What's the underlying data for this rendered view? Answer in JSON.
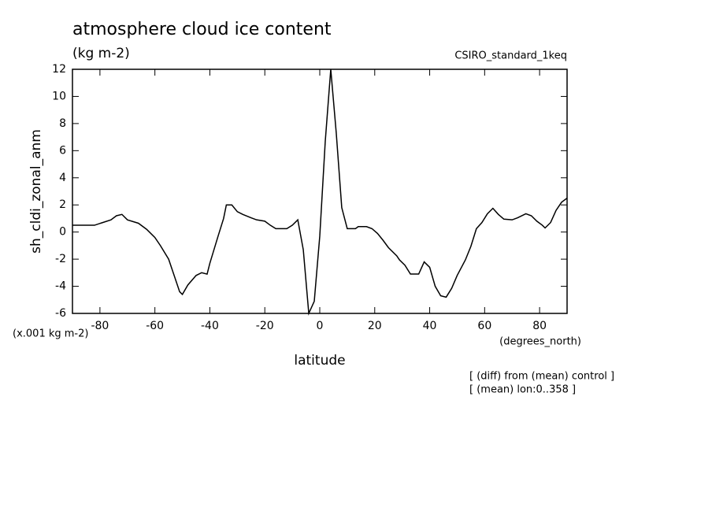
{
  "chart_data": {
    "type": "line",
    "title": "atmosphere cloud ice content",
    "subtitle": "(kg m-2)",
    "dataset_label": "CSIRO_standard_1keq",
    "y_label": "sh_cldi_zonal_anm",
    "y_units": "(x.001 kg m-2)",
    "x_units": "(degrees_north)",
    "x_label": "latitude",
    "notes": [
      "[ (diff) from (mean) control ]",
      "[ (mean) lon:0..358 ]"
    ],
    "x": [
      -90,
      -82,
      -79,
      -76,
      -74,
      -72,
      -70,
      -66,
      -63,
      -60,
      -58,
      -55,
      -53,
      -51,
      -50,
      -48,
      -45,
      -43,
      -41,
      -40,
      -37,
      -35,
      -34,
      -32,
      -30,
      -28,
      -25,
      -23,
      -20,
      -18,
      -16,
      -12,
      -10,
      -8,
      -6,
      -4,
      -2,
      0,
      2,
      4,
      6,
      8,
      10,
      13,
      14,
      17,
      19,
      21,
      23,
      25,
      28,
      29,
      31,
      33,
      36,
      38,
      40,
      42,
      44,
      46,
      48,
      50,
      53,
      55,
      57,
      59,
      61,
      63,
      65,
      67,
      70,
      72,
      75,
      77,
      79,
      81,
      82,
      84,
      86,
      88,
      90
    ],
    "series": [
      {
        "name": "sh_cldi_zonal_anm",
        "color": "#000000",
        "values": [
          0.5,
          0.5,
          0.7,
          0.9,
          1.2,
          1.3,
          0.9,
          0.65,
          0.2,
          -0.4,
          -1.0,
          -2.0,
          -3.2,
          -4.4,
          -4.6,
          -3.9,
          -3.2,
          -3.0,
          -3.1,
          -2.3,
          -0.3,
          1.0,
          2.0,
          2.0,
          1.5,
          1.3,
          1.05,
          0.9,
          0.8,
          0.5,
          0.25,
          0.25,
          0.5,
          0.9,
          -1.3,
          -6.0,
          -5.1,
          -0.3,
          6.7,
          12,
          7.3,
          1.8,
          0.25,
          0.25,
          0.4,
          0.4,
          0.25,
          -0.1,
          -0.6,
          -1.15,
          -1.75,
          -2.05,
          -2.45,
          -3.1,
          -3.1,
          -2.2,
          -2.6,
          -4.0,
          -4.7,
          -4.8,
          -4.15,
          -3.2,
          -2.05,
          -1.05,
          0.25,
          0.7,
          1.35,
          1.75,
          1.3,
          0.95,
          0.9,
          1.05,
          1.35,
          1.2,
          0.8,
          0.5,
          0.3,
          0.7,
          1.6,
          2.2,
          2.5
        ]
      }
    ],
    "xlim": [
      -90,
      90
    ],
    "ylim": [
      -6,
      12
    ],
    "xticks": [
      -80,
      -60,
      -40,
      -20,
      0,
      20,
      40,
      60,
      80
    ],
    "yticks": [
      -6,
      -4,
      -2,
      0,
      2,
      4,
      6,
      8,
      10,
      12
    ]
  }
}
